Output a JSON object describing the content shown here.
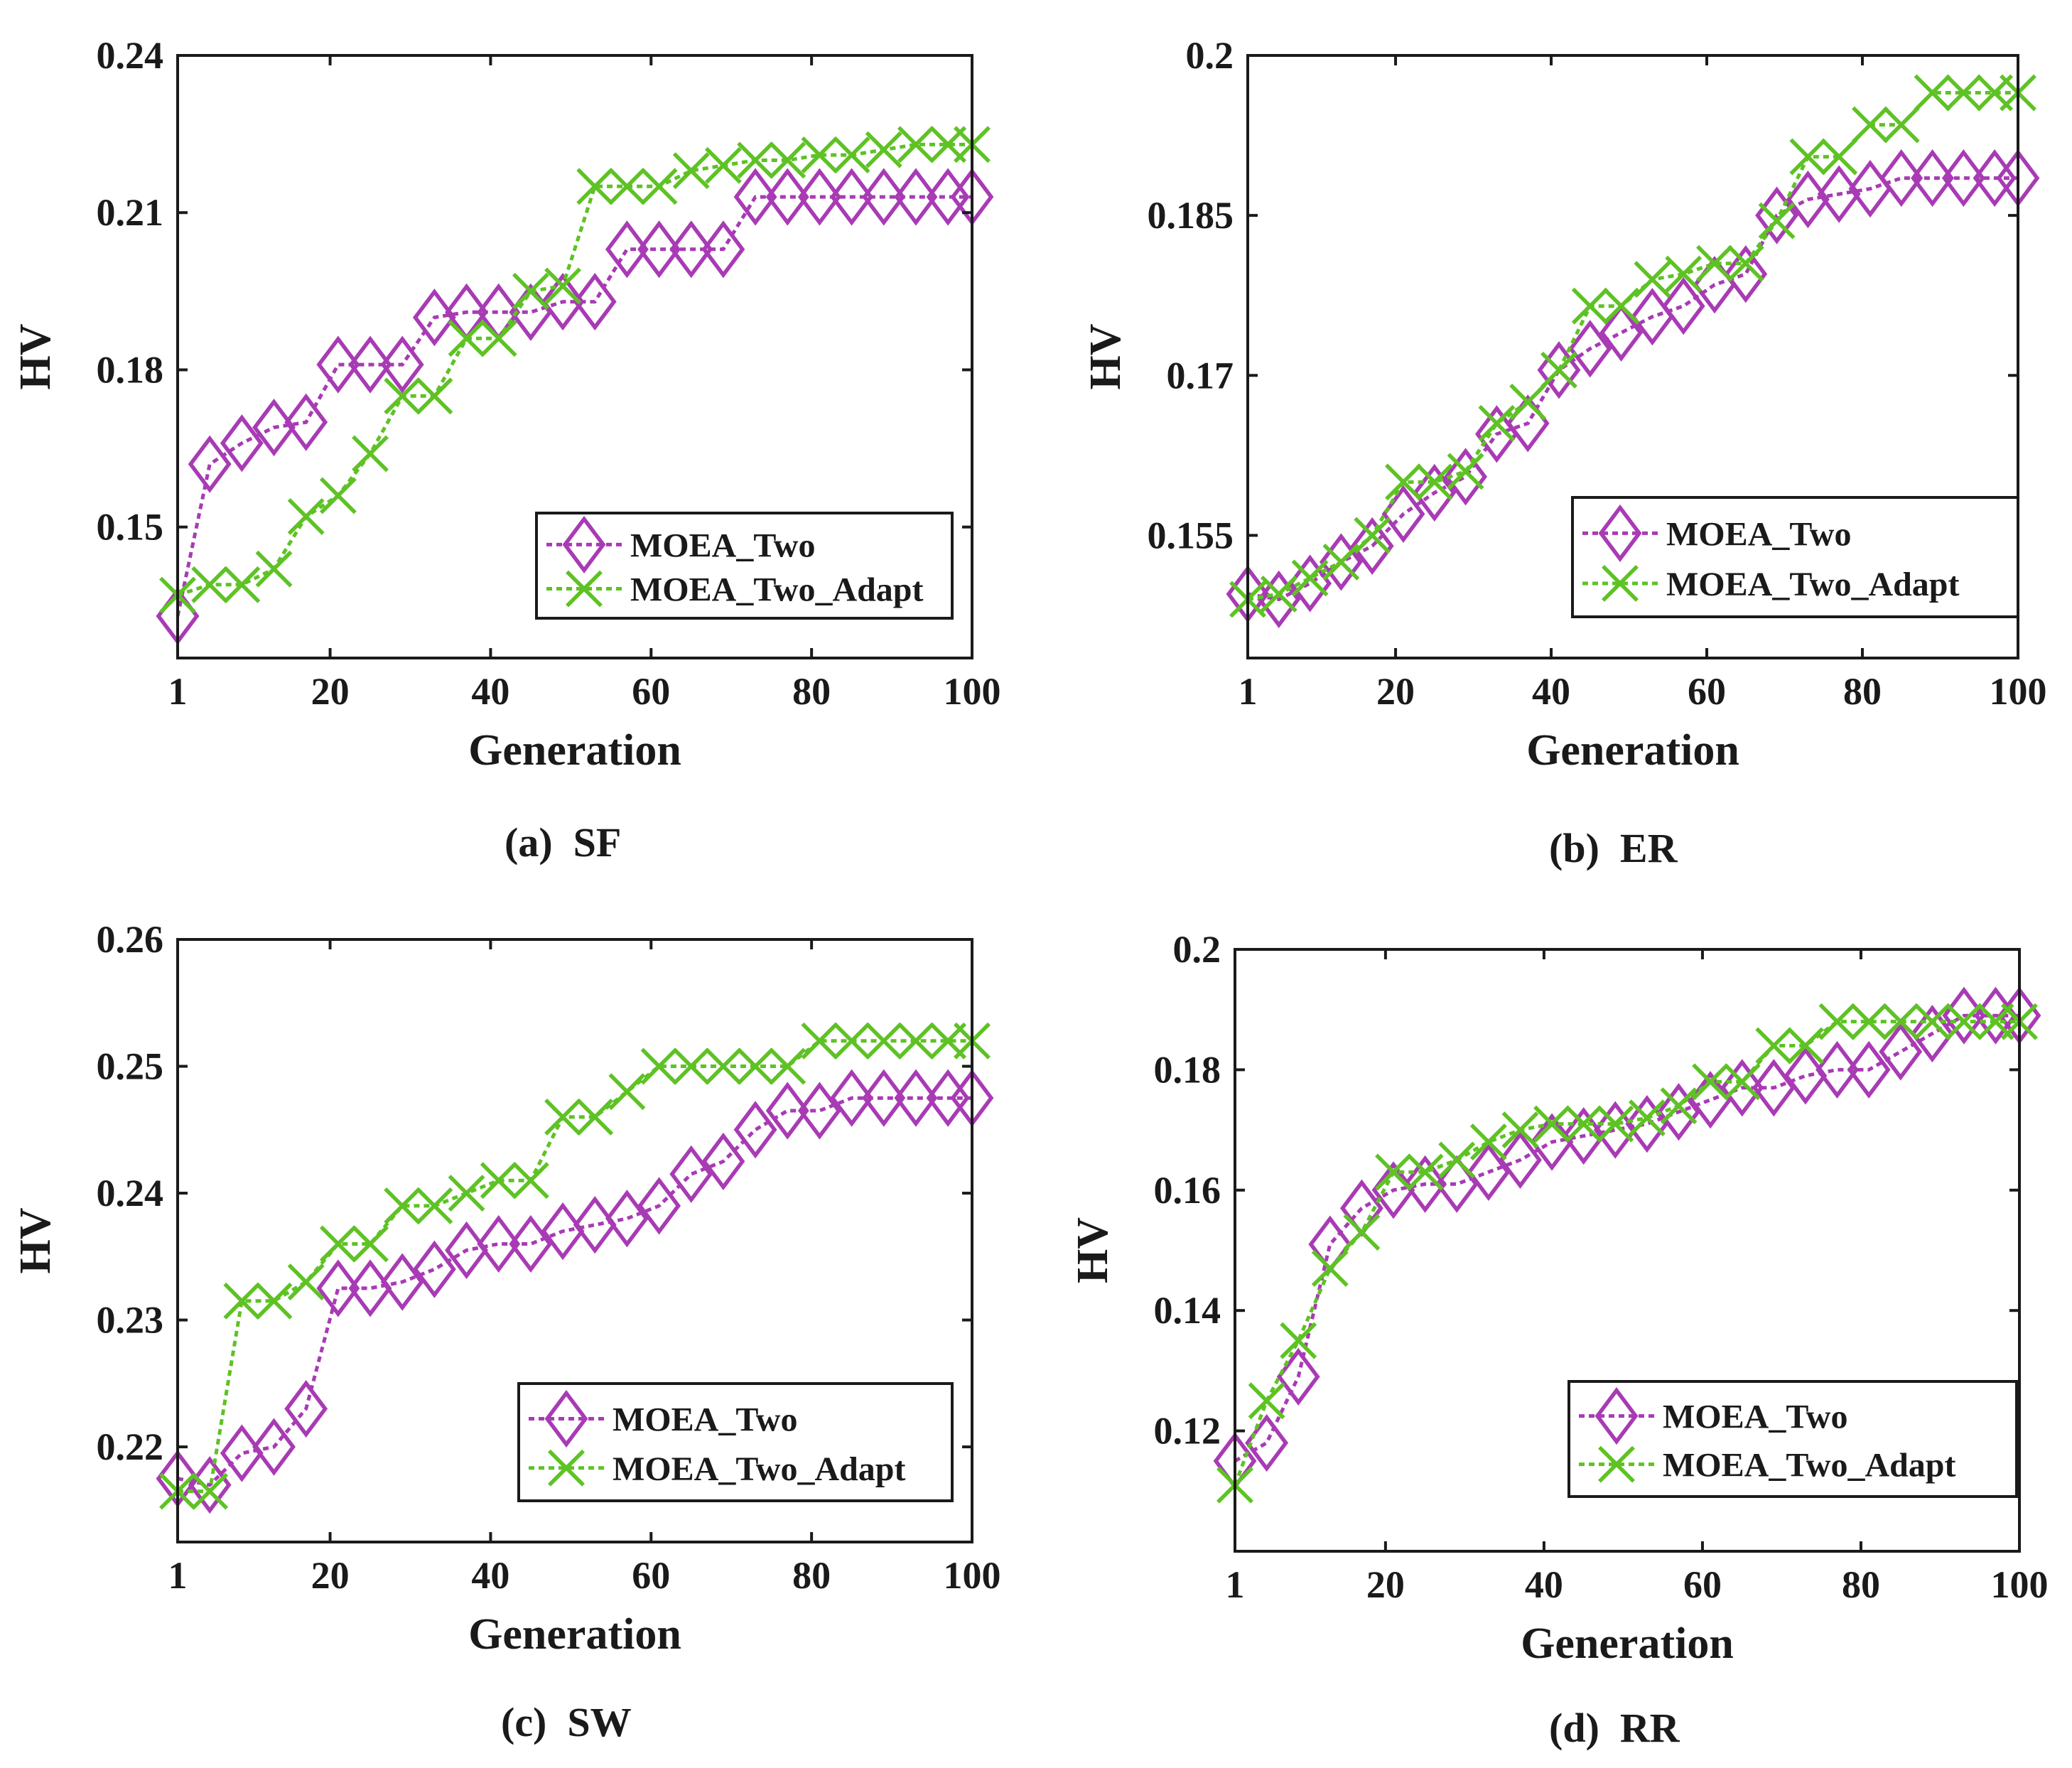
{
  "legend_labels": [
    "MOEA_Two",
    "MOEA_Two_Adapt"
  ],
  "colors": {
    "moea_two": "#a83bb4",
    "moea_two_adapt": "#5ec224",
    "axis": "#1a1a1a"
  },
  "chart_data": [
    {
      "type": "line",
      "caption": "(a)  SF",
      "xlabel": "Generation",
      "ylabel": "HV",
      "xlim": [
        1,
        100
      ],
      "ylim": [
        0.125,
        0.24
      ],
      "xticks": [
        "1",
        "20",
        "40",
        "60",
        "80",
        "100"
      ],
      "yticks": [
        "0.15",
        "0.18",
        "0.21",
        "0.24"
      ],
      "legend_position": "bottom-right",
      "series": [
        {
          "name": "MOEA_Two",
          "x": [
            1,
            5,
            9,
            13,
            17,
            21,
            25,
            29,
            33,
            37,
            41,
            45,
            49,
            53,
            57,
            61,
            65,
            69,
            73,
            77,
            81,
            85,
            89,
            93,
            97,
            100
          ],
          "y": [
            0.133,
            0.162,
            0.166,
            0.169,
            0.17,
            0.181,
            0.181,
            0.181,
            0.19,
            0.191,
            0.191,
            0.191,
            0.193,
            0.193,
            0.203,
            0.203,
            0.203,
            0.203,
            0.213,
            0.213,
            0.213,
            0.213,
            0.213,
            0.213,
            0.213,
            0.213
          ]
        },
        {
          "name": "MOEA_Two_Adapt",
          "x": [
            1,
            5,
            9,
            13,
            17,
            21,
            25,
            29,
            33,
            37,
            41,
            45,
            49,
            53,
            57,
            61,
            65,
            69,
            73,
            77,
            81,
            85,
            89,
            93,
            97,
            100
          ],
          "y": [
            0.137,
            0.139,
            0.139,
            0.142,
            0.152,
            0.156,
            0.164,
            0.175,
            0.175,
            0.186,
            0.186,
            0.195,
            0.196,
            0.215,
            0.215,
            0.215,
            0.218,
            0.219,
            0.22,
            0.22,
            0.221,
            0.221,
            0.222,
            0.223,
            0.223,
            0.223
          ]
        }
      ]
    },
    {
      "type": "line",
      "caption": "(b)  ER",
      "xlabel": "Generation",
      "ylabel": "HV",
      "xlim": [
        1,
        100
      ],
      "ylim": [
        0.1435,
        0.2
      ],
      "xticks": [
        "1",
        "20",
        "40",
        "60",
        "80",
        "100"
      ],
      "yticks": [
        "0.155",
        "0.17",
        "0.185",
        "0.2"
      ],
      "legend_position": "bottom-right",
      "series": [
        {
          "name": "MOEA_Two",
          "x": [
            1,
            5,
            9,
            13,
            17,
            21,
            25,
            29,
            33,
            37,
            41,
            45,
            49,
            53,
            57,
            61,
            65,
            69,
            73,
            77,
            81,
            85,
            89,
            93,
            97,
            100
          ],
          "y": [
            0.1495,
            0.149,
            0.1505,
            0.1525,
            0.154,
            0.157,
            0.159,
            0.1605,
            0.1645,
            0.1655,
            0.1705,
            0.1725,
            0.174,
            0.1755,
            0.1765,
            0.1785,
            0.1795,
            0.185,
            0.1865,
            0.187,
            0.1875,
            0.1885,
            0.1885,
            0.1885,
            0.1885,
            0.1885
          ]
        },
        {
          "name": "MOEA_Two_Adapt",
          "x": [
            1,
            5,
            9,
            13,
            17,
            21,
            25,
            29,
            33,
            37,
            41,
            45,
            49,
            53,
            57,
            61,
            65,
            69,
            73,
            77,
            81,
            85,
            89,
            93,
            97,
            100
          ],
          "y": [
            0.149,
            0.1495,
            0.151,
            0.1525,
            0.155,
            0.16,
            0.16,
            0.161,
            0.1655,
            0.1675,
            0.1705,
            0.1765,
            0.1765,
            0.179,
            0.1795,
            0.1805,
            0.1805,
            0.1845,
            0.1905,
            0.1905,
            0.1935,
            0.1935,
            0.1965,
            0.1965,
            0.1965,
            0.1965
          ]
        }
      ]
    },
    {
      "type": "line",
      "caption": "(c)  SW",
      "xlabel": "Generation",
      "ylabel": "HV",
      "xlim": [
        1,
        100
      ],
      "ylim": [
        0.2125,
        0.26
      ],
      "xticks": [
        "1",
        "20",
        "40",
        "60",
        "80",
        "100"
      ],
      "yticks": [
        "0.22",
        "0.23",
        "0.24",
        "0.25",
        "0.26"
      ],
      "legend_position": "bottom-right",
      "series": [
        {
          "name": "MOEA_Two",
          "x": [
            1,
            5,
            9,
            13,
            17,
            21,
            25,
            29,
            33,
            37,
            41,
            45,
            49,
            53,
            57,
            61,
            65,
            69,
            73,
            77,
            81,
            85,
            89,
            93,
            97,
            100
          ],
          "y": [
            0.2175,
            0.217,
            0.2195,
            0.22,
            0.223,
            0.2325,
            0.2325,
            0.233,
            0.234,
            0.2355,
            0.236,
            0.236,
            0.237,
            0.2375,
            0.238,
            0.239,
            0.2415,
            0.2425,
            0.245,
            0.2465,
            0.2465,
            0.2475,
            0.2475,
            0.2475,
            0.2475,
            0.2475
          ]
        },
        {
          "name": "MOEA_Two_Adapt",
          "x": [
            1,
            5,
            9,
            13,
            17,
            21,
            25,
            29,
            33,
            37,
            41,
            45,
            49,
            53,
            57,
            61,
            65,
            69,
            73,
            77,
            81,
            85,
            89,
            93,
            97,
            100
          ],
          "y": [
            0.2165,
            0.2165,
            0.2315,
            0.2315,
            0.233,
            0.236,
            0.236,
            0.239,
            0.239,
            0.24,
            0.241,
            0.241,
            0.246,
            0.246,
            0.248,
            0.25,
            0.25,
            0.25,
            0.25,
            0.25,
            0.252,
            0.252,
            0.252,
            0.252,
            0.252,
            0.252
          ]
        }
      ]
    },
    {
      "type": "line",
      "caption": "(d)  RR",
      "xlabel": "Generation",
      "ylabel": "HV",
      "xlim": [
        1,
        100
      ],
      "ylim": [
        0.1,
        0.2
      ],
      "xticks": [
        "1",
        "20",
        "40",
        "60",
        "80",
        "100"
      ],
      "yticks": [
        "0.12",
        "0.14",
        "0.16",
        "0.18",
        "0.2"
      ],
      "legend_position": "bottom-right",
      "series": [
        {
          "name": "MOEA_Two",
          "x": [
            1,
            5,
            9,
            13,
            17,
            21,
            25,
            29,
            33,
            37,
            41,
            45,
            49,
            53,
            57,
            61,
            65,
            69,
            73,
            77,
            81,
            85,
            89,
            93,
            97,
            100
          ],
          "y": [
            0.115,
            0.118,
            0.129,
            0.151,
            0.157,
            0.16,
            0.161,
            0.161,
            0.163,
            0.165,
            0.168,
            0.169,
            0.17,
            0.171,
            0.173,
            0.175,
            0.177,
            0.177,
            0.179,
            0.18,
            0.18,
            0.183,
            0.186,
            0.189,
            0.189,
            0.189
          ]
        },
        {
          "name": "MOEA_Two_Adapt",
          "x": [
            1,
            5,
            9,
            13,
            17,
            21,
            25,
            29,
            33,
            37,
            41,
            45,
            49,
            53,
            57,
            61,
            65,
            69,
            73,
            77,
            81,
            85,
            89,
            93,
            97,
            100
          ],
          "y": [
            0.111,
            0.125,
            0.135,
            0.147,
            0.153,
            0.163,
            0.163,
            0.165,
            0.168,
            0.17,
            0.171,
            0.171,
            0.171,
            0.172,
            0.174,
            0.178,
            0.178,
            0.184,
            0.184,
            0.188,
            0.188,
            0.188,
            0.188,
            0.188,
            0.188,
            0.188
          ]
        }
      ]
    }
  ]
}
